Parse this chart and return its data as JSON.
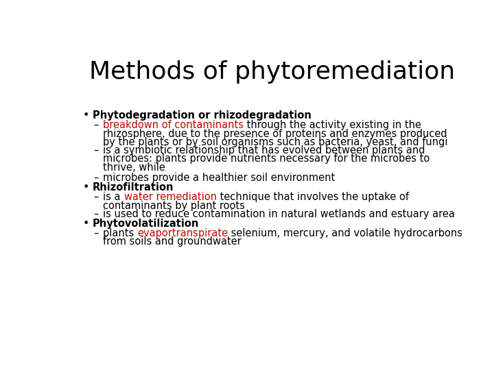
{
  "title": "Methods of phytoremediation",
  "background_color": "#ffffff",
  "title_color": "#000000",
  "title_fontsize": 26,
  "body_fontsize": 10.5,
  "red_color": "#cc0000",
  "black_color": "#000000",
  "font_family": "DejaVu Sans Condensed",
  "lines": [
    {
      "type": "bullet",
      "segs": [
        [
          "Phytodegradation or rhizodegradation",
          "#000000",
          true
        ]
      ],
      "extra_above": 0
    },
    {
      "type": "dash",
      "segs": [
        [
          "breakdown of contaminants",
          "#cc0000",
          false
        ],
        [
          " through the activity existing in the",
          "#000000",
          false
        ]
      ],
      "extra_above": 0
    },
    {
      "type": "cont",
      "segs": [
        [
          "rhizosphere, due to the presence of proteins and enzymes produced",
          "#000000",
          false
        ]
      ],
      "extra_above": 0
    },
    {
      "type": "cont",
      "segs": [
        [
          "by the plants or by soil organisms such as bacteria, yeast, and fungi",
          "#000000",
          false
        ]
      ],
      "extra_above": 0
    },
    {
      "type": "dash",
      "segs": [
        [
          "is a symbiotic relationship that has evolved between plants and",
          "#000000",
          false
        ]
      ],
      "extra_above": 0
    },
    {
      "type": "cont",
      "segs": [
        [
          "microbes: plants provide nutrients necessary for the microbes to",
          "#000000",
          false
        ]
      ],
      "extra_above": 0
    },
    {
      "type": "cont",
      "segs": [
        [
          "thrive, while",
          "#000000",
          false
        ]
      ],
      "extra_above": 0
    },
    {
      "type": "dash",
      "segs": [
        [
          "microbes provide a healthier soil environment",
          "#000000",
          false
        ]
      ],
      "extra_above": 4
    },
    {
      "type": "bullet",
      "segs": [
        [
          "Rhizofiltration",
          "#000000",
          true
        ]
      ],
      "extra_above": 2
    },
    {
      "type": "dash",
      "segs": [
        [
          "is a ",
          "#000000",
          false
        ],
        [
          "water remediation",
          "#cc0000",
          false
        ],
        [
          " technique that involves the uptake of",
          "#000000",
          false
        ]
      ],
      "extra_above": 0
    },
    {
      "type": "cont",
      "segs": [
        [
          "contaminants by plant roots",
          "#000000",
          false
        ]
      ],
      "extra_above": 0
    },
    {
      "type": "dash",
      "segs": [
        [
          "is used to reduce contamination in natural wetlands and estuary area",
          "#000000",
          false
        ]
      ],
      "extra_above": 0
    },
    {
      "type": "bullet",
      "segs": [
        [
          "Phytovolatilization",
          "#000000",
          true
        ]
      ],
      "extra_above": 2
    },
    {
      "type": "dash",
      "segs": [
        [
          "plants ",
          "#000000",
          false
        ],
        [
          "evaportranspirate",
          "#cc0000",
          false
        ],
        [
          " selenium, mercury, and volatile hydrocarbons",
          "#000000",
          false
        ]
      ],
      "extra_above": 0
    },
    {
      "type": "cont",
      "segs": [
        [
          "from soils and groundwater",
          "#000000",
          false
        ]
      ],
      "extra_above": 0
    }
  ]
}
